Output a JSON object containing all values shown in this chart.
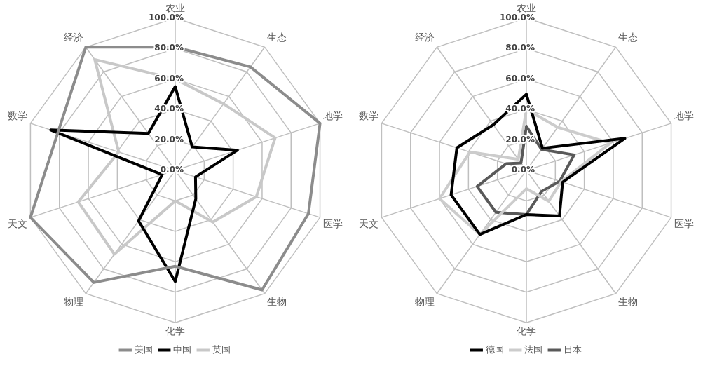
{
  "chart_data": [
    {
      "type": "radar",
      "categories": [
        "农业",
        "生态",
        "地学",
        "医学",
        "生物",
        "化学",
        "物理",
        "天文",
        "数学",
        "经济"
      ],
      "series": [
        {
          "name": "美国",
          "color": "#8c8c8c",
          "values": [
            81,
            84,
            100,
            92,
            97,
            63,
            91,
            100,
            81,
            100
          ]
        },
        {
          "name": "中国",
          "color": "#000000",
          "values": [
            55,
            19,
            43,
            14,
            23,
            73,
            41,
            9,
            86,
            30
          ]
        },
        {
          "name": "英国",
          "color": "#c8c8c8",
          "values": [
            60,
            54,
            69,
            56,
            42,
            20,
            68,
            67,
            39,
            90
          ]
        }
      ],
      "ylim": [
        0,
        100
      ],
      "yticks": [
        {
          "value": 0,
          "label": "0.0%"
        },
        {
          "value": 20,
          "label": "20.0%"
        },
        {
          "value": 40,
          "label": "40.0%"
        },
        {
          "value": 60,
          "label": "60.0%"
        },
        {
          "value": 80,
          "label": "80.0%"
        },
        {
          "value": 100,
          "label": "100.0%"
        }
      ],
      "grid": true,
      "legend": "bottom",
      "marker": "none"
    },
    {
      "type": "radar",
      "categories": [
        "农业",
        "生态",
        "地学",
        "医学",
        "生物",
        "化学",
        "物理",
        "天文",
        "数学",
        "经济"
      ],
      "series": [
        {
          "name": "德国",
          "color": "#000000",
          "values": [
            50,
            18,
            68,
            25,
            37,
            29,
            52,
            52,
            48,
            37
          ]
        },
        {
          "name": "法国",
          "color": "#cccccc",
          "values": [
            40,
            35,
            58,
            24,
            25,
            12,
            52,
            60,
            39,
            9
          ]
        },
        {
          "name": "日本",
          "color": "#595959",
          "values": [
            29,
            17,
            33,
            23,
            17,
            29,
            34,
            34,
            14,
            6
          ]
        }
      ],
      "ylim": [
        0,
        100
      ],
      "yticks": [
        {
          "value": 0,
          "label": "0.0%"
        },
        {
          "value": 20,
          "label": "20.0%"
        },
        {
          "value": 40,
          "label": "40.0%"
        },
        {
          "value": 60,
          "label": "60.0%"
        },
        {
          "value": 80,
          "label": "80.0%"
        },
        {
          "value": 100,
          "label": "100.0%"
        }
      ],
      "grid": true,
      "legend": "bottom",
      "marker": "none"
    }
  ]
}
